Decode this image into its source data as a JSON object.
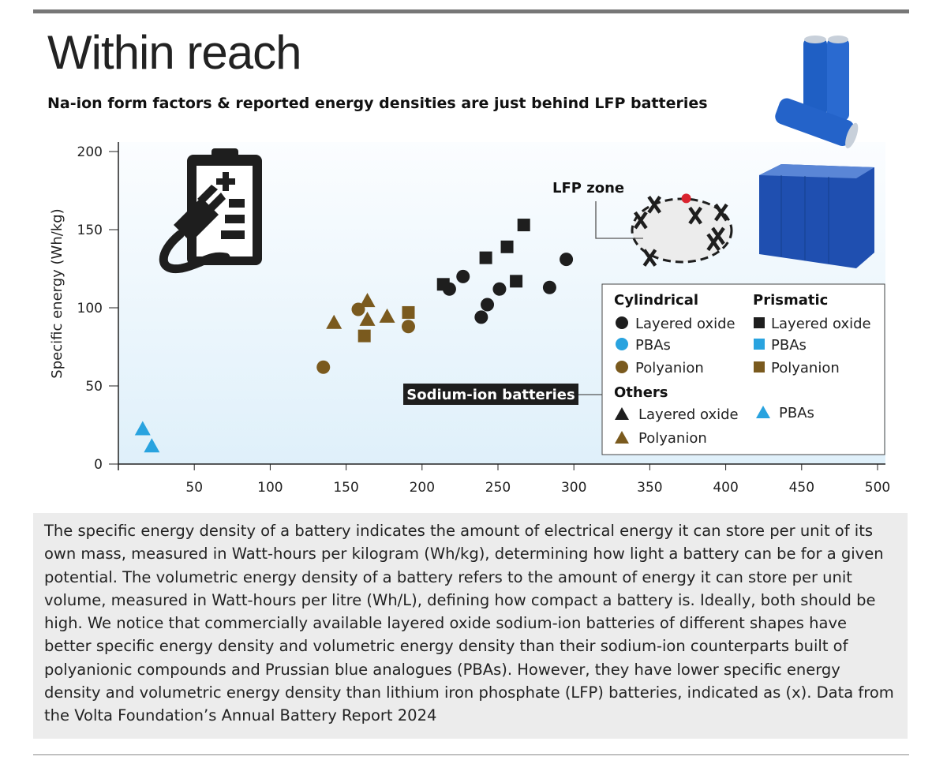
{
  "header": {
    "title": "Within reach",
    "subtitle": "Na-ion form factors & reported energy densities are just behind LFP batteries"
  },
  "caption": "The specific energy density of a battery indicates the amount of electrical energy it can store per unit of its own mass, measured in Watt-hours per kilogram (Wh/kg), determining how light a battery can be for a given potential. The volumetric energy density of a battery refers to the amount of energy it can store per unit volume, measured in Watt-hours per litre (Wh/L), defining how compact a battery is. Ideally, both should be high. We notice that commercially available layered oxide sodium-ion batteries of different shapes have better specific energy density and volumetric energy density than their sodium-ion counterparts built of polyanionic compounds and Prussian blue analogues (PBAs). However, they have lower specific energy density and volumetric energy density than lithium iron phosphate (LFP) batteries, indicated as (x). Data from the Volta Foundation’s Annual Battery Report 2024",
  "chart_data": {
    "type": "scatter",
    "ylabel": "Specific energy (Wh/kg)",
    "xlabel": "",
    "xlim": [
      0,
      505
    ],
    "ylim": [
      0,
      200
    ],
    "xticks": [
      50,
      100,
      150,
      200,
      250,
      300,
      350,
      400,
      450,
      500
    ],
    "yticks": [
      0,
      50,
      100,
      150,
      200
    ],
    "colors": {
      "layered_oxide": "#1e1e1e",
      "pbas": "#29a3df",
      "polyanion": "#7a5a1e",
      "lfp": "#1e1e1e",
      "highlight": "#d9232e"
    },
    "annotations": {
      "lfp_zone": "LFP zone",
      "sodium_ion": "Sodium-ion batteries"
    },
    "legend": {
      "cylindrical": "Cylindrical",
      "prismatic": "Prismatic",
      "others": "Others",
      "layered_oxide": "Layered oxide",
      "pbas": "PBAs",
      "polyanion": "Polyanion",
      "placement": "bottom-right"
    },
    "series": [
      {
        "group": "Cylindrical",
        "name": "Layered oxide",
        "shape": "circle",
        "color": "#1e1e1e",
        "points": [
          [
            218,
            112
          ],
          [
            227,
            120
          ],
          [
            251,
            112
          ],
          [
            243,
            102
          ],
          [
            239,
            94
          ],
          [
            284,
            113
          ],
          [
            295,
            131
          ]
        ]
      },
      {
        "group": "Cylindrical",
        "name": "Polyanion",
        "shape": "circle",
        "color": "#7a5a1e",
        "points": [
          [
            135,
            62
          ],
          [
            158,
            99
          ],
          [
            191,
            88
          ]
        ]
      },
      {
        "group": "Prismatic",
        "name": "Layered oxide",
        "shape": "square",
        "color": "#1e1e1e",
        "points": [
          [
            214,
            115
          ],
          [
            242,
            132
          ],
          [
            256,
            139
          ],
          [
            267,
            153
          ],
          [
            262,
            117
          ]
        ]
      },
      {
        "group": "Prismatic",
        "name": "Polyanion",
        "shape": "square",
        "color": "#7a5a1e",
        "points": [
          [
            191,
            97
          ],
          [
            162,
            82
          ]
        ]
      },
      {
        "group": "Others",
        "name": "Polyanion",
        "shape": "triangle",
        "color": "#7a5a1e",
        "points": [
          [
            142,
            90
          ],
          [
            164,
            104
          ],
          [
            164,
            92
          ],
          [
            177,
            94
          ]
        ]
      },
      {
        "group": "Others",
        "name": "PBAs",
        "shape": "triangle",
        "color": "#29a3df",
        "points": [
          [
            16,
            22
          ],
          [
            22,
            11
          ]
        ]
      },
      {
        "group": "LFP",
        "name": "LFP",
        "shape": "x",
        "color": "#1e1e1e",
        "points": [
          [
            344,
            156
          ],
          [
            353,
            166
          ],
          [
            380,
            159
          ],
          [
            397,
            161
          ],
          [
            395,
            146
          ],
          [
            392,
            142
          ],
          [
            350,
            132
          ]
        ]
      },
      {
        "group": "LFP",
        "name": "LFP highlight",
        "shape": "circle",
        "color": "#d9232e",
        "points": [
          [
            374,
            170
          ]
        ]
      }
    ]
  }
}
